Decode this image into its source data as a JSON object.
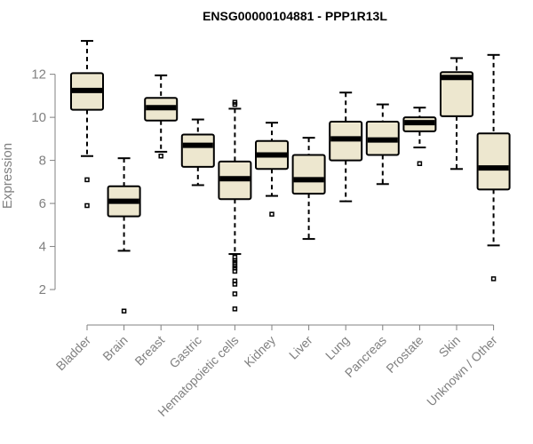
{
  "chart_data": {
    "type": "boxplot",
    "title": "ENSG00000104881 - PPP1R13L",
    "xlabel": "",
    "ylabel": "Expression",
    "ylim": [
      0.6,
      13.8
    ],
    "yticks": [
      2,
      4,
      6,
      8,
      10,
      12
    ],
    "box_fill": "#ede7cf",
    "categories": [
      "Bladder",
      "Brain",
      "Breast",
      "Gastric",
      "Hematopoietic cells",
      "Kidney",
      "Liver",
      "Lung",
      "Pancreas",
      "Prostate",
      "Skin",
      "Unknown / Other"
    ],
    "boxes": [
      {
        "name": "Bladder",
        "whisker_low": 8.2,
        "q1": 10.35,
        "median": 11.25,
        "q3": 12.05,
        "whisker_high": 13.55,
        "outliers": [
          7.1,
          5.9
        ]
      },
      {
        "name": "Brain",
        "whisker_low": 3.8,
        "q1": 5.4,
        "median": 6.1,
        "q3": 6.8,
        "whisker_high": 8.1,
        "outliers": [
          1.0
        ]
      },
      {
        "name": "Breast",
        "whisker_low": 8.4,
        "q1": 9.85,
        "median": 10.45,
        "q3": 10.9,
        "whisker_high": 11.95,
        "outliers": [
          8.2
        ]
      },
      {
        "name": "Gastric",
        "whisker_low": 6.85,
        "q1": 7.7,
        "median": 8.7,
        "q3": 9.2,
        "whisker_high": 9.9,
        "outliers": []
      },
      {
        "name": "Hematopoietic cells",
        "whisker_low": 3.65,
        "q1": 6.2,
        "median": 7.15,
        "q3": 7.95,
        "whisker_high": 10.4,
        "outliers": [
          10.7,
          10.6,
          3.5,
          3.35,
          3.25,
          3.1,
          3.0,
          2.85,
          2.4,
          2.25,
          1.8,
          1.1
        ]
      },
      {
        "name": "Kidney",
        "whisker_low": 6.35,
        "q1": 7.6,
        "median": 8.25,
        "q3": 8.9,
        "whisker_high": 9.75,
        "outliers": [
          5.5
        ]
      },
      {
        "name": "Liver",
        "whisker_low": 4.35,
        "q1": 6.45,
        "median": 7.1,
        "q3": 8.25,
        "whisker_high": 9.05,
        "outliers": []
      },
      {
        "name": "Lung",
        "whisker_low": 6.1,
        "q1": 8.0,
        "median": 9.0,
        "q3": 9.8,
        "whisker_high": 11.15,
        "outliers": []
      },
      {
        "name": "Pancreas",
        "whisker_low": 6.9,
        "q1": 8.25,
        "median": 8.95,
        "q3": 9.8,
        "whisker_high": 10.6,
        "outliers": []
      },
      {
        "name": "Prostate",
        "whisker_low": 8.6,
        "q1": 9.35,
        "median": 9.75,
        "q3": 10.0,
        "whisker_high": 10.45,
        "outliers": [
          7.85
        ]
      },
      {
        "name": "Skin",
        "whisker_low": 7.6,
        "q1": 10.05,
        "median": 11.85,
        "q3": 12.1,
        "whisker_high": 12.75,
        "outliers": []
      },
      {
        "name": "Unknown / Other",
        "whisker_low": 4.05,
        "q1": 6.65,
        "median": 7.65,
        "q3": 9.25,
        "whisker_high": 12.9,
        "outliers": [
          2.5
        ]
      }
    ]
  }
}
